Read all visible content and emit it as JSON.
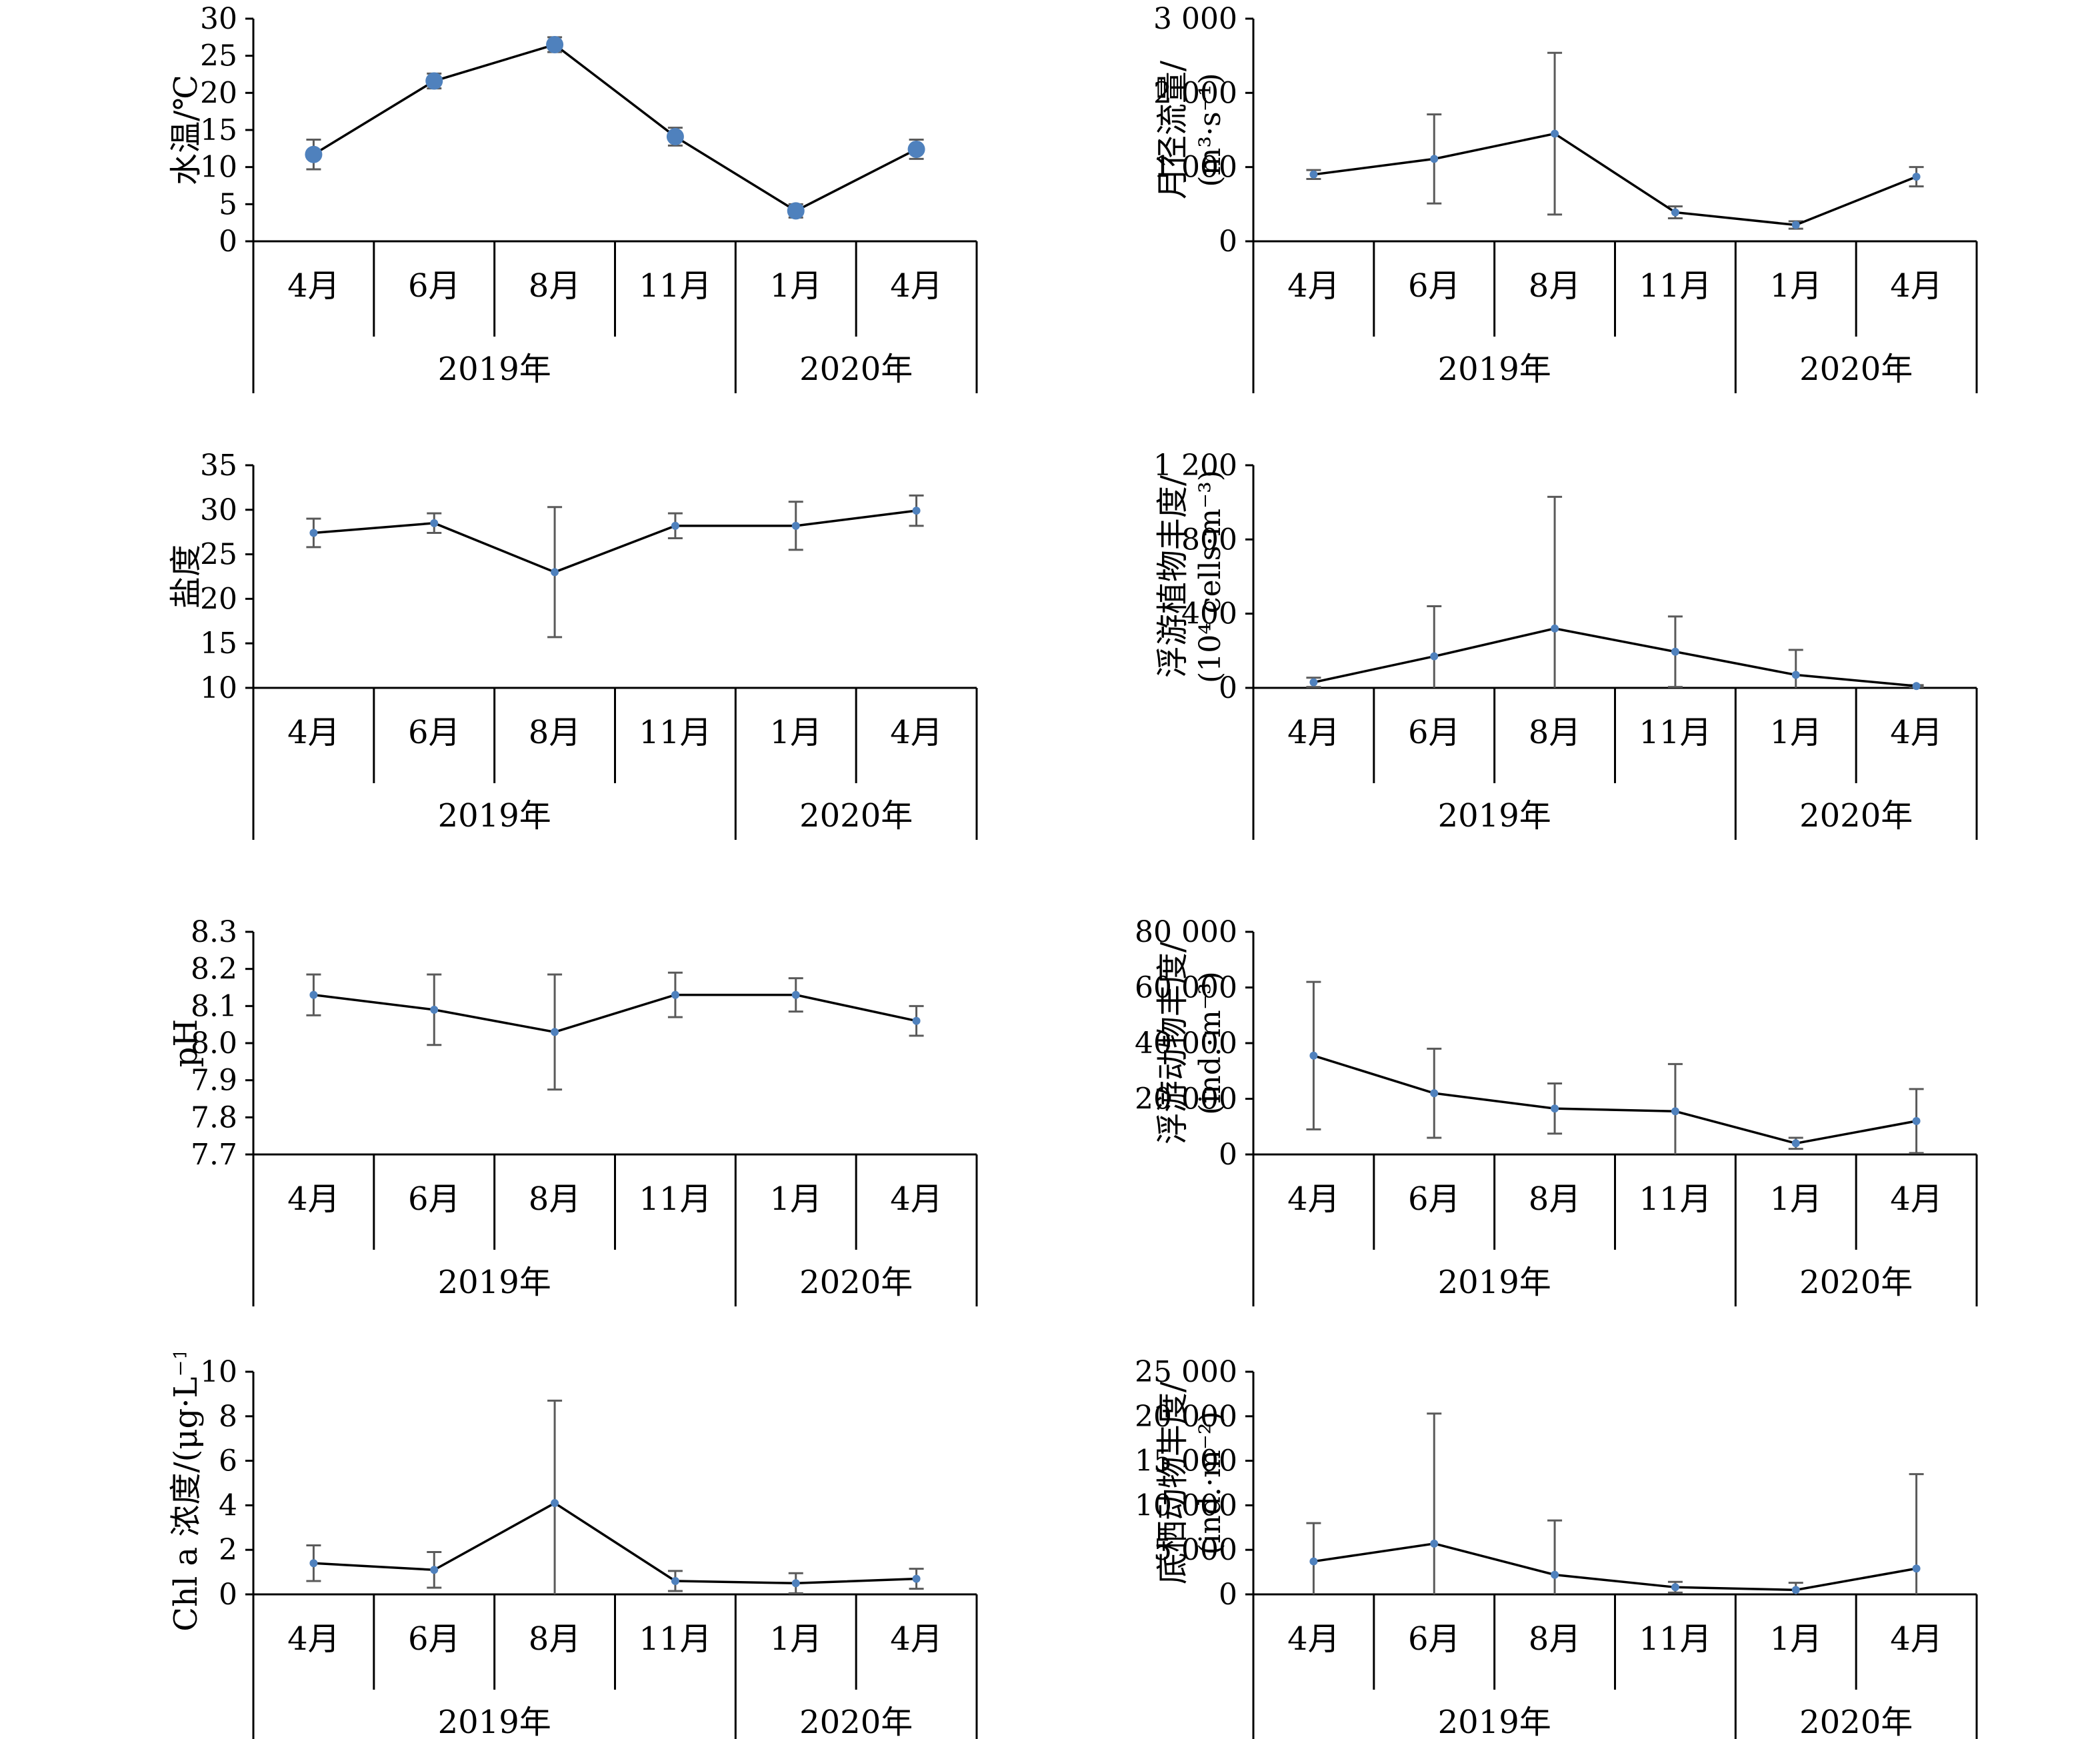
{
  "chart_data": [
    {
      "type": "line",
      "ylabel": "水温/℃",
      "ylim": [
        0,
        30
      ],
      "yticks": [
        0,
        5,
        10,
        15,
        20,
        25,
        30
      ],
      "ytick_labels": [
        "0",
        "5",
        "10",
        "15",
        "20",
        "25",
        "30"
      ],
      "categories": [
        "4月",
        "6月",
        "8月",
        "11月",
        "1月",
        "4月"
      ],
      "groups": [
        {
          "label": "2019年",
          "span": 4
        },
        {
          "label": "2020年",
          "span": 2
        }
      ],
      "values": [
        11.7,
        21.6,
        26.5,
        14.1,
        4.1,
        12.4
      ],
      "errors": [
        2.0,
        1.0,
        1.0,
        1.2,
        0.9,
        1.3
      ],
      "marker": "large"
    },
    {
      "type": "line",
      "ylabel": "月径流量/",
      "ylabel2": "(m³·s⁻¹)",
      "ylim": [
        0,
        3000
      ],
      "yticks": [
        0,
        1000,
        2000,
        3000
      ],
      "ytick_labels": [
        "0",
        "1 000",
        "2 000",
        "3 000"
      ],
      "categories": [
        "4月",
        "6月",
        "8月",
        "11月",
        "1月",
        "4月"
      ],
      "groups": [
        {
          "label": "2019年",
          "span": 4
        },
        {
          "label": "2020年",
          "span": 2
        }
      ],
      "values": [
        900,
        1110,
        1450,
        390,
        220,
        870
      ],
      "errors": [
        60,
        600,
        1090,
        80,
        50,
        130
      ],
      "marker": "small"
    },
    {
      "type": "line",
      "ylabel": "盐度",
      "ylim": [
        10,
        35
      ],
      "yticks": [
        10,
        15,
        20,
        25,
        30,
        35
      ],
      "ytick_labels": [
        "10",
        "15",
        "20",
        "25",
        "30",
        "35"
      ],
      "categories": [
        "4月",
        "6月",
        "8月",
        "11月",
        "1月",
        "4月"
      ],
      "groups": [
        {
          "label": "2019年",
          "span": 4
        },
        {
          "label": "2020年",
          "span": 2
        }
      ],
      "values": [
        27.4,
        28.5,
        23.0,
        28.2,
        28.2,
        29.9
      ],
      "errors": [
        1.6,
        1.1,
        7.3,
        1.4,
        2.7,
        1.7
      ],
      "marker": "small"
    },
    {
      "type": "line",
      "ylabel": "浮游植物丰度/",
      "ylabel2": "(10⁴ cells·m⁻³)",
      "ylim": [
        0,
        1200
      ],
      "yticks": [
        0,
        400,
        800,
        1200
      ],
      "ytick_labels": [
        "0",
        "400",
        "800",
        "1 200"
      ],
      "categories": [
        "4月",
        "6月",
        "8月",
        "11月",
        "1月",
        "4月"
      ],
      "groups": [
        {
          "label": "2019年",
          "span": 4
        },
        {
          "label": "2020年",
          "span": 2
        }
      ],
      "values": [
        30,
        170,
        320,
        195,
        70,
        10
      ],
      "errors": [
        25,
        270,
        710,
        190,
        135,
        5
      ],
      "marker": "small"
    },
    {
      "type": "line",
      "ylabel": "pH",
      "ylim": [
        7.7,
        8.3
      ],
      "yticks": [
        7.7,
        7.8,
        7.9,
        8.0,
        8.1,
        8.2,
        8.3
      ],
      "ytick_labels": [
        "7.7",
        "7.8",
        "7.9",
        "8.0",
        "8.1",
        "8.2",
        "8.3"
      ],
      "categories": [
        "4月",
        "6月",
        "8月",
        "11月",
        "1月",
        "4月"
      ],
      "groups": [
        {
          "label": "2019年",
          "span": 4
        },
        {
          "label": "2020年",
          "span": 2
        }
      ],
      "values": [
        8.13,
        8.09,
        8.03,
        8.13,
        8.13,
        8.06
      ],
      "errors": [
        0.055,
        0.095,
        0.155,
        0.06,
        0.045,
        0.04
      ],
      "marker": "small"
    },
    {
      "type": "line",
      "ylabel": "浮游动物丰度/",
      "ylabel2": "(ind.·m⁻³)",
      "ylim": [
        0,
        80000
      ],
      "yticks": [
        0,
        20000,
        40000,
        60000,
        80000
      ],
      "ytick_labels": [
        "0",
        "20 000",
        "40 000",
        "60 000",
        "80 000"
      ],
      "categories": [
        "4月",
        "6月",
        "8月",
        "11月",
        "1月",
        "4月"
      ],
      "groups": [
        {
          "label": "2019年",
          "span": 4
        },
        {
          "label": "2020年",
          "span": 2
        }
      ],
      "values": [
        35500,
        22000,
        16500,
        15500,
        4000,
        12000
      ],
      "errors": [
        26500,
        16000,
        9000,
        17000,
        2000,
        11500
      ],
      "marker": "small"
    },
    {
      "type": "line",
      "ylabel": "Chl a 浓度/(μg·L⁻¹)",
      "ylim": [
        0,
        10
      ],
      "yticks": [
        0,
        2,
        4,
        6,
        8,
        10
      ],
      "ytick_labels": [
        "0",
        "2",
        "4",
        "6",
        "8",
        "10"
      ],
      "categories": [
        "4月",
        "6月",
        "8月",
        "11月",
        "1月",
        "4月"
      ],
      "groups": [
        {
          "label": "2019年",
          "span": 4
        },
        {
          "label": "2020年",
          "span": 2
        }
      ],
      "values": [
        1.4,
        1.1,
        4.1,
        0.6,
        0.5,
        0.7
      ],
      "errors": [
        0.8,
        0.8,
        4.6,
        0.45,
        0.45,
        0.45
      ],
      "marker": "small"
    },
    {
      "type": "line",
      "ylabel": "底栖动物丰度/",
      "ylabel2": "(ind.·m⁻²)",
      "ylim": [
        0,
        25000
      ],
      "yticks": [
        0,
        5000,
        10000,
        15000,
        20000,
        25000
      ],
      "ytick_labels": [
        "0",
        "5 000",
        "10 000",
        "15 000",
        "20 000",
        "25 000"
      ],
      "categories": [
        "4月",
        "6月",
        "8月",
        "11月",
        "1月",
        "4月"
      ],
      "groups": [
        {
          "label": "2019年",
          "span": 4
        },
        {
          "label": "2020年",
          "span": 2
        }
      ],
      "values": [
        3700,
        5700,
        2200,
        800,
        500,
        2900
      ],
      "errors": [
        4300,
        14600,
        6100,
        600,
        800,
        10600
      ],
      "marker": "small"
    }
  ]
}
